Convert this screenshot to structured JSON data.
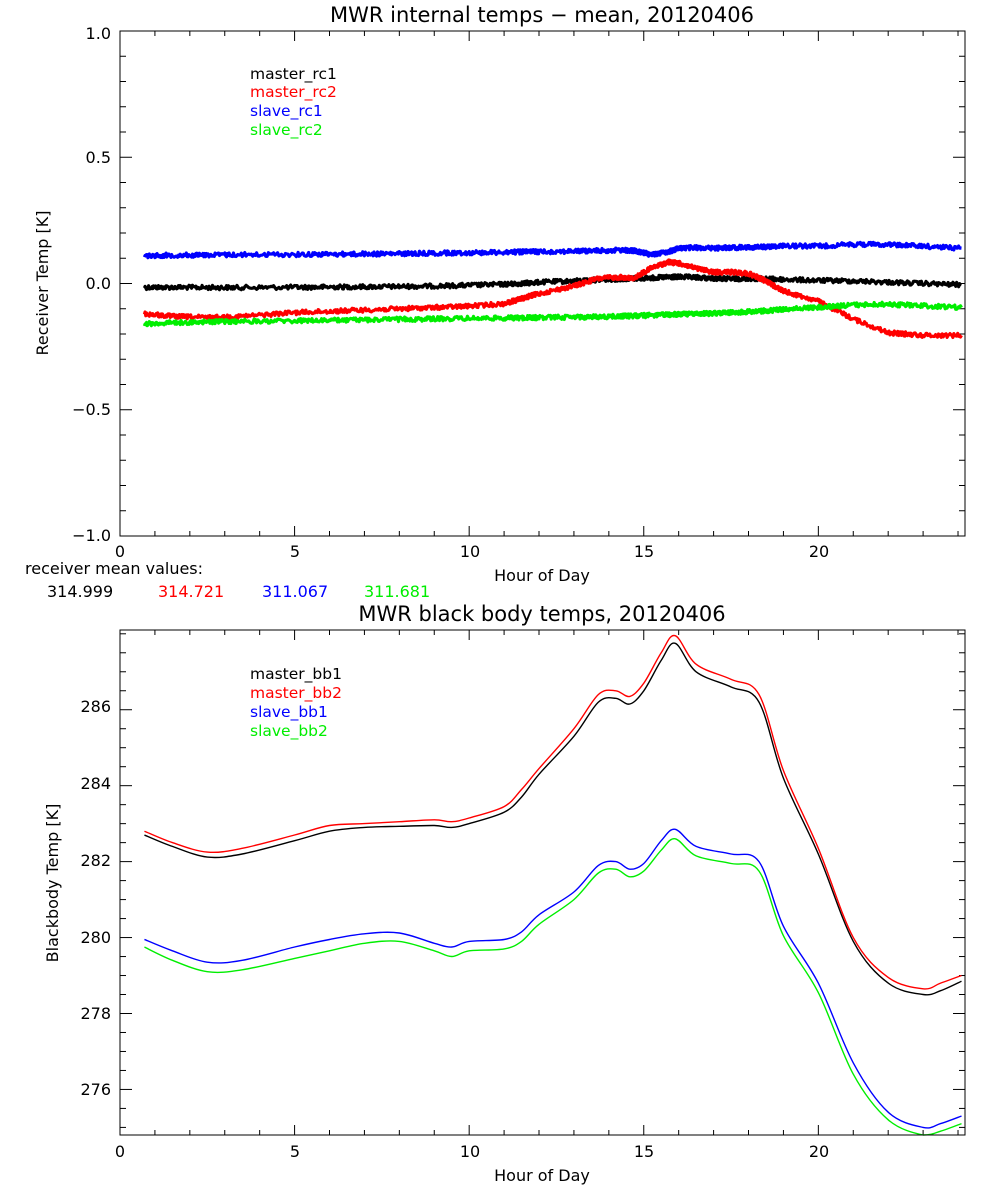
{
  "chart_data": [
    {
      "type": "line",
      "title": "MWR internal temps − mean, 20120406",
      "xlabel": "Hour of Day",
      "ylabel": "Receiver Temp [K]",
      "xlim": [
        0,
        24.2
      ],
      "ylim": [
        -1.0,
        1.0
      ],
      "x_ticks": [
        "0",
        "5",
        "10",
        "15",
        "20"
      ],
      "y_ticks": [
        "−1.0",
        "−0.5",
        "0.0",
        "0.5",
        "1.0"
      ],
      "legend_position": "top-left",
      "x": [
        0.7,
        1.5,
        2.5,
        3.5,
        5,
        6,
        7,
        8,
        9,
        10,
        11,
        11.5,
        12,
        13,
        13.7,
        14.3,
        14.7,
        15.2,
        15.7,
        16,
        16.5,
        17,
        17.5,
        18,
        18.5,
        19,
        20,
        21,
        22,
        23,
        24.1
      ],
      "series": [
        {
          "name": "master_rc1",
          "color": "#000000",
          "values": [
            -0.015,
            -0.015,
            -0.016,
            -0.016,
            -0.015,
            -0.014,
            -0.013,
            -0.012,
            -0.01,
            -0.007,
            -0.003,
            0.0,
            0.005,
            0.01,
            0.015,
            0.018,
            0.02,
            0.022,
            0.025,
            0.026,
            0.024,
            0.02,
            0.018,
            0.02,
            0.018,
            0.016,
            0.012,
            0.01,
            0.005,
            0.0,
            -0.005
          ]
        },
        {
          "name": "master_rc2",
          "color": "#ff0000",
          "values": [
            -0.12,
            -0.13,
            -0.135,
            -0.13,
            -0.115,
            -0.11,
            -0.105,
            -0.1,
            -0.095,
            -0.09,
            -0.08,
            -0.06,
            -0.04,
            -0.01,
            0.02,
            0.025,
            0.02,
            0.06,
            0.085,
            0.08,
            0.06,
            0.045,
            0.045,
            0.04,
            0.01,
            -0.03,
            -0.07,
            -0.14,
            -0.195,
            -0.205,
            -0.205
          ]
        },
        {
          "name": "slave_rc1",
          "color": "#0000ff",
          "values": [
            0.11,
            0.112,
            0.113,
            0.114,
            0.115,
            0.116,
            0.117,
            0.118,
            0.12,
            0.122,
            0.124,
            0.125,
            0.126,
            0.128,
            0.13,
            0.132,
            0.13,
            0.115,
            0.125,
            0.14,
            0.142,
            0.14,
            0.142,
            0.143,
            0.145,
            0.15,
            0.148,
            0.155,
            0.155,
            0.148,
            0.14
          ]
        },
        {
          "name": "slave_rc2",
          "color": "#00ee00",
          "values": [
            -0.16,
            -0.155,
            -0.152,
            -0.15,
            -0.148,
            -0.146,
            -0.144,
            -0.142,
            -0.14,
            -0.138,
            -0.137,
            -0.136,
            -0.135,
            -0.133,
            -0.132,
            -0.13,
            -0.128,
            -0.126,
            -0.124,
            -0.122,
            -0.12,
            -0.118,
            -0.115,
            -0.112,
            -0.108,
            -0.102,
            -0.095,
            -0.085,
            -0.082,
            -0.088,
            -0.095
          ]
        }
      ],
      "annotation": {
        "label": "receiver mean values:",
        "values": [
          "314.999",
          "314.721",
          "311.067",
          "311.681"
        ],
        "colors": [
          "#000000",
          "#ff0000",
          "#0000ff",
          "#00ee00"
        ]
      }
    },
    {
      "type": "line",
      "title": "MWR black body temps, 20120406",
      "xlabel": "Hour of Day",
      "ylabel": "Blackbody Temp [K]",
      "xlim": [
        0,
        24.2
      ],
      "ylim": [
        274.8,
        288.1
      ],
      "x_ticks": [
        "0",
        "5",
        "10",
        "15",
        "20"
      ],
      "y_ticks": [
        "276",
        "278",
        "280",
        "282",
        "284",
        "286"
      ],
      "legend_position": "top-left",
      "x": [
        0.7,
        1.5,
        2.5,
        3.5,
        5,
        6,
        7,
        8,
        9,
        9.5,
        10,
        11,
        11.5,
        12,
        13,
        13.7,
        14.2,
        14.6,
        15,
        15.5,
        15.9,
        16.5,
        17.5,
        18.3,
        19,
        20,
        21,
        22,
        23,
        23.5,
        24.1
      ],
      "series": [
        {
          "name": "master_bb1",
          "color": "#000000",
          "values": [
            282.7,
            282.4,
            282.12,
            282.2,
            282.55,
            282.8,
            282.9,
            282.93,
            282.95,
            282.9,
            283.0,
            283.3,
            283.7,
            284.3,
            285.3,
            286.2,
            286.3,
            286.15,
            286.5,
            287.3,
            287.75,
            287.0,
            286.6,
            286.2,
            284.2,
            282.2,
            279.9,
            278.8,
            278.5,
            278.6,
            278.85
          ]
        },
        {
          "name": "master_bb2",
          "color": "#ff0000",
          "values": [
            282.8,
            282.5,
            282.25,
            282.35,
            282.7,
            282.95,
            283.0,
            283.05,
            283.1,
            283.05,
            283.15,
            283.45,
            283.9,
            284.45,
            285.5,
            286.4,
            286.5,
            286.35,
            286.7,
            287.5,
            287.95,
            287.2,
            286.8,
            286.4,
            284.4,
            282.35,
            280.0,
            278.95,
            278.65,
            278.8,
            279.0
          ]
        },
        {
          "name": "slave_bb1",
          "color": "#0000ff",
          "values": [
            279.95,
            279.65,
            279.35,
            279.4,
            279.75,
            279.95,
            280.1,
            280.12,
            279.85,
            279.75,
            279.9,
            279.95,
            280.15,
            280.6,
            281.2,
            281.9,
            282.0,
            281.8,
            281.95,
            282.55,
            282.85,
            282.4,
            282.2,
            282.0,
            280.3,
            278.8,
            276.7,
            275.4,
            275.0,
            275.1,
            275.3
          ]
        },
        {
          "name": "slave_bb2",
          "color": "#00ee00",
          "values": [
            279.75,
            279.4,
            279.1,
            279.15,
            279.45,
            279.65,
            279.85,
            279.9,
            279.65,
            279.5,
            279.65,
            279.7,
            279.9,
            280.35,
            281.0,
            281.7,
            281.8,
            281.6,
            281.75,
            282.3,
            282.6,
            282.15,
            281.95,
            281.75,
            280.05,
            278.55,
            276.4,
            275.2,
            274.8,
            274.9,
            275.1
          ]
        }
      ]
    }
  ]
}
